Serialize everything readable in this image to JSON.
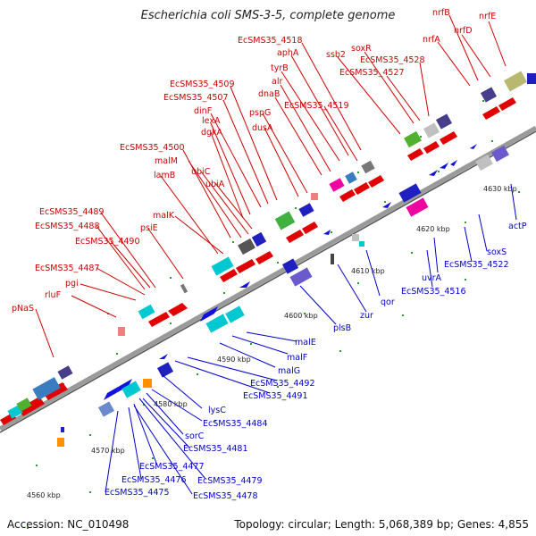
{
  "title": "Escherichia coli SMS-3-5, complete genome",
  "footer": {
    "accession": "Accession: NC_010498",
    "summary": "Topology: circular; Length: 5,068,389 bp; Genes: 4,855"
  },
  "colors": {
    "forward_label": "#cc0000",
    "reverse_label": "#0000cc",
    "backbone": "#9a9a9a",
    "tick": "#2aa02a"
  },
  "coordinates": [
    "4560 kbp",
    "4570 kbp",
    "4580 kbp",
    "4590 kbp",
    "4600 kbp",
    "4610 kbp",
    "4620 kbp",
    "4630 kbp"
  ],
  "forward_labels": [
    "nrfB",
    "nrfE",
    "nrfD",
    "nrfA",
    "EcSMS35_4518",
    "soxR",
    "aphA",
    "ssb2",
    "EcSMS35_4528",
    "EcSMS35_4527",
    "tyrB",
    "alr",
    "EcSMS35_4509",
    "dnaB",
    "EcSMS35_4519",
    "EcSMS35_4507",
    "pspG",
    "dinF",
    "dusA",
    "lexA",
    "dgkA",
    "EcSMS35_4500",
    "ubiC",
    "malM",
    "ubiA",
    "lamB",
    "malK",
    "EcSMS35_4489",
    "psiE",
    "EcSMS35_4488",
    "EcSMS35_4490",
    "EcSMS35_4487",
    "pgi",
    "rluF",
    "pNaS"
  ],
  "reverse_labels": [
    "actP",
    "soxS",
    "EcSMS35_4522",
    "uvrA",
    "EcSMS35_4516",
    "qor",
    "zur",
    "plsB",
    "malE",
    "malF",
    "malG",
    "EcSMS35_4492",
    "EcSMS35_4491",
    "lysC",
    "EcSMS35_4484",
    "sorC",
    "EcSMS35_4481",
    "EcSMS35_4477",
    "EcSMS35_4479",
    "EcSMS35_4476",
    "EcSMS35_4478",
    "EcSMS35_4475"
  ]
}
